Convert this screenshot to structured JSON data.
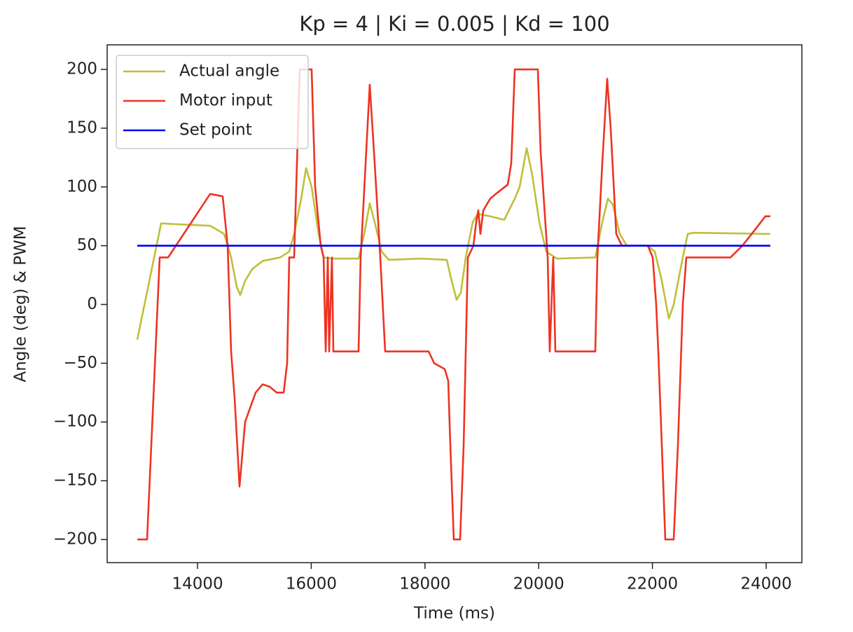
{
  "chart_data": {
    "type": "line",
    "title": "Kp = 4 | Ki = 0.005 | Kd = 100",
    "x_label": "Time (ms)",
    "y_label": "Angle (deg) & PWM",
    "xlim": [
      12411,
      24628
    ],
    "ylim": [
      -219.7,
      220.9
    ],
    "xticks": [
      14000,
      16000,
      18000,
      20000,
      22000,
      24000
    ],
    "yticks": [
      {
        "value": -200,
        "label": "−200"
      },
      {
        "value": -150,
        "label": "−150"
      },
      {
        "value": -100,
        "label": "−100"
      },
      {
        "value": -50,
        "label": "−50"
      },
      0,
      50,
      100,
      150,
      200
    ],
    "legend": "upper left",
    "grid": false,
    "series": [
      {
        "name": "Actual angle",
        "color": "#bfbf3a",
        "x": [
          12941,
          13360,
          13729,
          14222,
          14468,
          14591,
          14690,
          14751,
          14837,
          14961,
          15145,
          15453,
          15613,
          15699,
          15823,
          15909,
          16007,
          16130,
          16217,
          16377,
          16832,
          16931,
          17029,
          17116,
          17239,
          17362,
          17916,
          18384,
          18470,
          18557,
          18630,
          18717,
          18840,
          18926,
          19148,
          19394,
          19579,
          19665,
          19788,
          19887,
          20010,
          20133,
          20318,
          20995,
          21118,
          21217,
          21303,
          21426,
          21549,
          21919,
          22042,
          22165,
          22288,
          22374,
          22534,
          22621,
          22719,
          24074
        ],
        "values": [
          -30,
          69,
          68,
          67,
          60,
          40,
          15,
          8,
          20,
          30,
          37,
          40,
          45,
          60,
          90,
          116,
          100,
          60,
          40,
          39,
          39,
          60,
          86,
          70,
          45,
          38,
          39,
          38,
          20,
          4,
          10,
          40,
          70,
          77,
          75,
          72,
          90,
          100,
          133,
          110,
          70,
          45,
          39,
          40,
          70,
          90,
          85,
          60,
          50,
          50,
          45,
          20,
          -12,
          0,
          40,
          60,
          61,
          60
        ]
      },
      {
        "name": "Motor input",
        "color": "#ee3322",
        "x": [
          12941,
          13113,
          13261,
          13335,
          13483,
          14222,
          14443,
          14530,
          14591,
          14653,
          14739,
          14837,
          15022,
          15145,
          15268,
          15392,
          15515,
          15576,
          15613,
          15699,
          15798,
          16007,
          16069,
          16167,
          16217,
          16254,
          16291,
          16315,
          16364,
          16389,
          16832,
          16869,
          16956,
          17029,
          17116,
          17214,
          17300,
          18064,
          18162,
          18347,
          18409,
          18446,
          18507,
          18618,
          18680,
          18754,
          18852,
          18901,
          18938,
          18975,
          19025,
          19148,
          19271,
          19456,
          19517,
          19579,
          19985,
          20034,
          20158,
          20194,
          20256,
          20293,
          20995,
          21032,
          21118,
          21204,
          21266,
          21364,
          21463,
          21919,
          22005,
          22066,
          22103,
          22165,
          22226,
          22374,
          22448,
          22534,
          22596,
          23372,
          23581,
          23827,
          23987,
          24074
        ],
        "values": [
          -200,
          -200,
          -40,
          40,
          40,
          94,
          92,
          50,
          -40,
          -80,
          -155,
          -100,
          -75,
          -68,
          -70,
          -75,
          -75,
          -50,
          40,
          40,
          200,
          200,
          100,
          50,
          40,
          -40,
          40,
          -40,
          40,
          -40,
          -40,
          40,
          120,
          187,
          120,
          40,
          -40,
          -40,
          -50,
          -55,
          -65,
          -120,
          -200,
          -200,
          -120,
          40,
          50,
          70,
          80,
          60,
          80,
          90,
          95,
          102,
          120,
          200,
          200,
          130,
          40,
          -40,
          40,
          -40,
          -40,
          40,
          120,
          192,
          150,
          60,
          50,
          50,
          40,
          0,
          -40,
          -120,
          -200,
          -200,
          -120,
          0,
          40,
          40,
          50,
          65,
          75,
          75
        ]
      },
      {
        "name": "Set point",
        "color": "#0000ff",
        "x": [
          12941,
          24074
        ],
        "values": [
          50,
          50
        ]
      }
    ]
  }
}
